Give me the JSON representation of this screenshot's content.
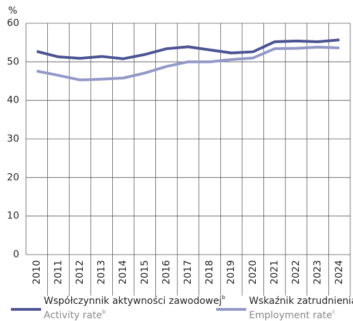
{
  "chart_data": {
    "type": "line",
    "y_unit": "%",
    "categories": [
      "2010",
      "2011",
      "2012",
      "2013",
      "2014",
      "2015",
      "2016",
      "2017",
      "2018",
      "2019",
      "2020",
      "2021",
      "2022",
      "2023",
      "2024"
    ],
    "series": [
      {
        "name": "Współczynnik aktywności zawodowej",
        "name_note": "b",
        "name_en": "Activity rate",
        "name_en_note": "b",
        "color": "#4b5394",
        "values": [
          52.7,
          51.3,
          50.9,
          51.4,
          50.8,
          51.9,
          53.4,
          53.9,
          53.1,
          52.3,
          52.6,
          55.2,
          55.4,
          55.2,
          55.7
        ]
      },
      {
        "name": "Wskaźnik zatrudnienia",
        "name_note": "c",
        "name_en": "Employment rate",
        "name_en_note": "c",
        "color": "#9298c8",
        "values": [
          47.6,
          46.5,
          45.3,
          45.5,
          45.8,
          47.1,
          48.8,
          50.0,
          50.0,
          50.6,
          51.0,
          53.4,
          53.5,
          53.8,
          53.6
        ]
      }
    ],
    "ylim": [
      0,
      60
    ],
    "yticks": [
      0,
      10,
      20,
      30,
      40,
      50,
      60
    ],
    "grid": true
  }
}
